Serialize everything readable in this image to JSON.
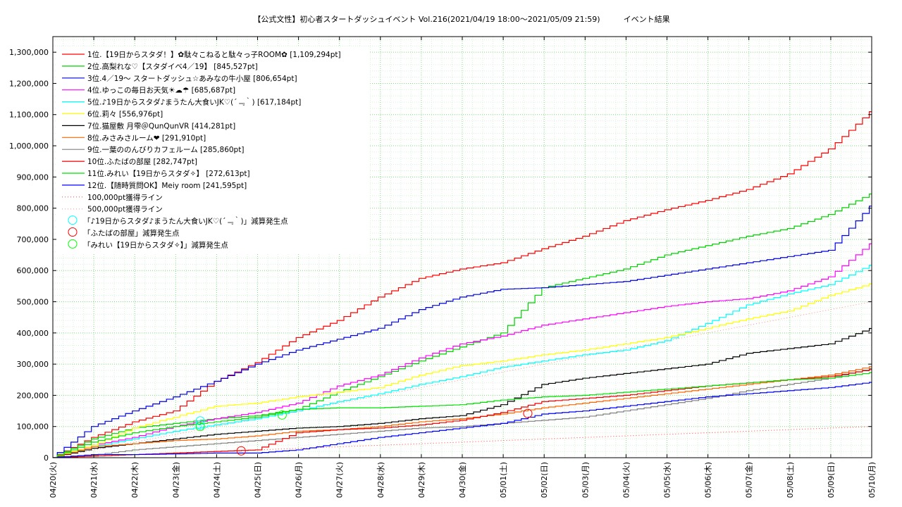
{
  "chart_data": {
    "type": "line",
    "title": "【公式文性】初心者スタートダッシュイベント Vol.216(2021/04/19 18:00〜2021/05/09 21:59)　　　イベント結果",
    "xlabel": "",
    "ylabel": "",
    "ylim": [
      0,
      1350000
    ],
    "y_ticks": [
      0,
      100000,
      200000,
      300000,
      400000,
      500000,
      600000,
      700000,
      800000,
      900000,
      1000000,
      1100000,
      1200000,
      1300000
    ],
    "y_tick_labels": [
      "0",
      "100,000",
      "200,000",
      "300,000",
      "400,000",
      "500,000",
      "600,000",
      "700,000",
      "800,000",
      "900,000",
      "1,000,000",
      "1,100,000",
      "1,200,000",
      "1,300,000"
    ],
    "x_range_days": [
      0,
      20
    ],
    "x_tick_labels": [
      "04/20(火)",
      "04/21(水)",
      "04/22(木)",
      "04/23(金)",
      "04/24(土)",
      "04/25(日)",
      "04/26(月)",
      "04/27(火)",
      "04/28(水)",
      "04/29(木)",
      "04/30(金)",
      "05/01(土)",
      "05/02(日)",
      "05/03(月)",
      "05/04(火)",
      "05/05(水)",
      "05/06(木)",
      "05/07(金)",
      "05/08(土)",
      "05/09(日)",
      "05/10(月)"
    ],
    "grid": true,
    "legend_position": "top-left",
    "series": [
      {
        "name": "1位.【19日からスタダ！】✿駄々こねると駄々っ子ROOM✿ [1,109,294pt]",
        "color": "#ff0000",
        "x": [
          "04/20(火)",
          "04/21(水)",
          "04/22(木)",
          "04/23(金)",
          "04/24(土)",
          "04/25(日)",
          "04/26(月)",
          "04/27(火)",
          "04/28(水)",
          "04/29(木)",
          "04/30(金)",
          "05/01(土)",
          "05/02(日)",
          "05/03(月)",
          "05/04(火)",
          "05/05(水)",
          "05/06(木)",
          "05/07(金)",
          "05/08(土)",
          "05/09(日)",
          "05/10(月)"
        ],
        "y": [
          0,
          65000,
          115000,
          150000,
          245000,
          305000,
          385000,
          440000,
          515000,
          575000,
          605000,
          625000,
          670000,
          710000,
          760000,
          795000,
          825000,
          860000,
          910000,
          990000,
          1109294
        ]
      },
      {
        "name": "2位.高梨れな♡【スタダイベ4／19】 [845,527pt]",
        "color": "#00d000",
        "x": [
          "04/20(火)",
          "04/21(水)",
          "04/22(木)",
          "04/23(金)",
          "04/24(土)",
          "04/25(日)",
          "04/26(月)",
          "04/27(火)",
          "04/28(水)",
          "04/29(木)",
          "04/30(金)",
          "05/01(土)",
          "05/02(日)",
          "05/03(月)",
          "05/04(火)",
          "05/05(水)",
          "05/06(木)",
          "05/07(金)",
          "05/08(土)",
          "05/09(日)",
          "05/10(月)"
        ],
        "y": [
          0,
          60000,
          95000,
          110000,
          125000,
          135000,
          155000,
          210000,
          260000,
          310000,
          355000,
          400000,
          545000,
          575000,
          605000,
          650000,
          680000,
          710000,
          735000,
          780000,
          845527
        ]
      },
      {
        "name": "3位.4／19〜 スタートダッシュ☆あみなの牛小屋 [806,654pt]",
        "color": "#0000e0",
        "x": [
          "04/20(火)",
          "04/21(水)",
          "04/22(木)",
          "04/23(金)",
          "04/24(土)",
          "04/25(日)",
          "04/26(月)",
          "04/27(火)",
          "04/28(水)",
          "04/29(木)",
          "04/30(金)",
          "05/01(土)",
          "05/02(日)",
          "05/03(月)",
          "05/04(火)",
          "05/05(水)",
          "05/06(木)",
          "05/07(金)",
          "05/08(土)",
          "05/09(日)",
          "05/10(月)"
        ],
        "y": [
          0,
          100000,
          150000,
          195000,
          245000,
          300000,
          345000,
          380000,
          415000,
          475000,
          515000,
          540000,
          545000,
          555000,
          565000,
          585000,
          605000,
          625000,
          645000,
          665000,
          806654
        ]
      },
      {
        "name": "4位.ゆっこの毎日お天気☀☁☂ [685,687pt]",
        "color": "#ff00ff",
        "x": [
          "04/20(火)",
          "04/21(水)",
          "04/22(木)",
          "04/23(金)",
          "04/24(土)",
          "04/25(日)",
          "04/26(月)",
          "04/27(火)",
          "04/28(水)",
          "04/29(木)",
          "04/30(金)",
          "05/01(土)",
          "05/02(日)",
          "05/03(月)",
          "05/04(火)",
          "05/05(水)",
          "05/06(木)",
          "05/07(金)",
          "05/08(土)",
          "05/09(日)",
          "05/10(月)"
        ],
        "y": [
          0,
          40000,
          65000,
          100000,
          125000,
          145000,
          175000,
          230000,
          265000,
          320000,
          365000,
          390000,
          425000,
          445000,
          465000,
          485000,
          500000,
          510000,
          535000,
          580000,
          685687
        ]
      },
      {
        "name": "5位.♪19日からスタダ♪まうたん大食いJK♡(´﹃｀) [617,184pt]",
        "color": "#00ffff",
        "x": [
          "04/20(火)",
          "04/21(水)",
          "04/22(木)",
          "04/23(金)",
          "04/24(土)",
          "04/25(日)",
          "04/26(月)",
          "04/27(火)",
          "04/28(水)",
          "04/29(木)",
          "04/30(金)",
          "05/01(土)",
          "05/02(日)",
          "05/03(月)",
          "05/04(火)",
          "05/05(水)",
          "05/06(木)",
          "05/07(金)",
          "05/08(土)",
          "05/09(日)",
          "05/10(月)"
        ],
        "y": [
          0,
          35000,
          60000,
          85000,
          105000,
          125000,
          150000,
          180000,
          205000,
          235000,
          260000,
          290000,
          310000,
          330000,
          345000,
          375000,
          430000,
          490000,
          525000,
          555000,
          617184
        ]
      },
      {
        "name": "6位.莉々 [556,976pt]",
        "color": "#ffff00",
        "x": [
          "04/20(火)",
          "04/21(水)",
          "04/22(木)",
          "04/23(金)",
          "04/24(土)",
          "04/25(日)",
          "04/26(月)",
          "04/27(火)",
          "04/28(水)",
          "04/29(木)",
          "04/30(金)",
          "05/01(土)",
          "05/02(日)",
          "05/03(月)",
          "05/04(火)",
          "05/05(水)",
          "05/06(木)",
          "05/07(金)",
          "05/08(土)",
          "05/09(日)",
          "05/10(月)"
        ],
        "y": [
          0,
          40000,
          95000,
          130000,
          165000,
          175000,
          195000,
          210000,
          225000,
          265000,
          295000,
          310000,
          330000,
          345000,
          365000,
          385000,
          415000,
          445000,
          470000,
          520000,
          556976
        ]
      },
      {
        "name": "7位.猫屋敷 月雫＠QunQunVR [414,281pt]",
        "color": "#000000",
        "x": [
          "04/20(火)",
          "04/21(水)",
          "04/22(木)",
          "04/23(金)",
          "04/24(土)",
          "04/25(日)",
          "04/26(月)",
          "04/27(火)",
          "04/28(水)",
          "04/29(木)",
          "04/30(金)",
          "05/01(土)",
          "05/02(日)",
          "05/03(月)",
          "05/04(火)",
          "05/05(水)",
          "05/06(木)",
          "05/07(金)",
          "05/08(土)",
          "05/09(日)",
          "05/10(月)"
        ],
        "y": [
          0,
          30000,
          45000,
          60000,
          75000,
          85000,
          95000,
          100000,
          110000,
          125000,
          135000,
          170000,
          235000,
          255000,
          270000,
          285000,
          300000,
          335000,
          350000,
          365000,
          414281
        ]
      },
      {
        "name": "8位.みさみさルーム❤ [291,910pt]",
        "color": "#ff6600",
        "x": [
          "04/20(火)",
          "04/21(水)",
          "04/22(木)",
          "04/23(金)",
          "04/24(土)",
          "04/25(日)",
          "04/26(月)",
          "04/27(火)",
          "04/28(水)",
          "04/29(木)",
          "04/30(金)",
          "05/01(土)",
          "05/02(日)",
          "05/03(月)",
          "05/04(火)",
          "05/05(水)",
          "05/06(木)",
          "05/07(金)",
          "05/08(土)",
          "05/09(日)",
          "05/10(月)"
        ],
        "y": [
          0,
          35000,
          45000,
          55000,
          60000,
          70000,
          85000,
          90000,
          100000,
          115000,
          125000,
          140000,
          160000,
          175000,
          190000,
          205000,
          220000,
          235000,
          250000,
          265000,
          291910
        ]
      },
      {
        "name": "9位.一葉ののんびりカフェルーム [285,860pt]",
        "color": "#808080",
        "x": [
          "04/20(火)",
          "04/21(水)",
          "04/22(木)",
          "04/23(金)",
          "04/24(土)",
          "04/25(日)",
          "04/26(月)",
          "04/27(火)",
          "04/28(水)",
          "04/29(木)",
          "04/30(金)",
          "05/01(土)",
          "05/02(日)",
          "05/03(月)",
          "05/04(火)",
          "05/05(水)",
          "05/06(木)",
          "05/07(金)",
          "05/08(土)",
          "05/09(日)",
          "05/10(月)"
        ],
        "y": [
          0,
          8000,
          25000,
          35000,
          45000,
          55000,
          65000,
          75000,
          85000,
          95000,
          100000,
          110000,
          120000,
          130000,
          150000,
          170000,
          190000,
          215000,
          235000,
          255000,
          285860
        ]
      },
      {
        "name": "10位.ふたばの部屋 [282,747pt]",
        "color": "#ee0000",
        "x": [
          "04/20(火)",
          "04/21(水)",
          "04/22(木)",
          "04/23(金)",
          "04/24(土)",
          "04/25(日)",
          "04/26(月)",
          "04/27(火)",
          "04/28(水)",
          "04/29(木)",
          "04/30(金)",
          "05/01(土)",
          "05/02(日)",
          "05/03(月)",
          "05/04(火)",
          "05/05(水)",
          "05/06(木)",
          "05/07(金)",
          "05/08(土)",
          "05/09(日)",
          "05/10(月)"
        ],
        "y": [
          0,
          5000,
          10000,
          15000,
          20000,
          25000,
          80000,
          90000,
          95000,
          105000,
          120000,
          145000,
          180000,
          190000,
          200000,
          215000,
          230000,
          240000,
          250000,
          260000,
          282747
        ]
      },
      {
        "name": "11位.みれい【19日からスタダ✧】 [272,613pt]",
        "color": "#00e000",
        "x": [
          "04/20(火)",
          "04/21(水)",
          "04/22(木)",
          "04/23(金)",
          "04/24(土)",
          "04/25(日)",
          "04/26(月)",
          "04/27(火)",
          "04/28(水)",
          "04/29(木)",
          "04/30(金)",
          "05/01(土)",
          "05/02(日)",
          "05/03(月)",
          "05/04(火)",
          "05/05(水)",
          "05/06(木)",
          "05/07(金)",
          "05/08(土)",
          "05/09(日)",
          "05/10(月)"
        ],
        "y": [
          0,
          50000,
          80000,
          100000,
          115000,
          130000,
          155000,
          160000,
          160000,
          165000,
          170000,
          185000,
          195000,
          200000,
          210000,
          220000,
          230000,
          240000,
          250000,
          255000,
          272613
        ]
      },
      {
        "name": "12位.【随時質問OK】Meiy room [241,595pt]",
        "color": "#0000ff",
        "x": [
          "04/20(火)",
          "04/21(水)",
          "04/22(木)",
          "04/23(金)",
          "04/24(土)",
          "04/25(日)",
          "04/26(月)",
          "04/27(火)",
          "04/28(水)",
          "04/29(木)",
          "04/30(金)",
          "05/01(土)",
          "05/02(日)",
          "05/03(月)",
          "05/04(火)",
          "05/05(水)",
          "05/06(木)",
          "05/07(金)",
          "05/08(土)",
          "05/09(日)",
          "05/10(月)"
        ],
        "y": [
          0,
          10000,
          10000,
          12000,
          15000,
          15000,
          25000,
          45000,
          65000,
          80000,
          95000,
          110000,
          140000,
          150000,
          165000,
          180000,
          195000,
          205000,
          215000,
          225000,
          241595
        ]
      }
    ],
    "reference_lines": [
      {
        "name": "100,000pt獲得ライン",
        "color": "#ff4040",
        "x": [
          "04/20(火)",
          "05/10(月)"
        ],
        "y": [
          0,
          100000
        ]
      },
      {
        "name": "500,000pt獲得ライン",
        "color": "#ff9090",
        "x": [
          "04/20(火)",
          "05/10(月)"
        ],
        "y": [
          0,
          500000
        ]
      }
    ],
    "markers": [
      {
        "name": "「♪19日からスタダ♪まうたん大食いJK♡(´﹃｀)」減算発生点",
        "color": "#00ffff",
        "points": [
          {
            "x": "04/23(金)",
            "y": 118000
          },
          {
            "x": "04/23(金)",
            "y": 105000
          }
        ]
      },
      {
        "name": "「ふたばの部屋」減算発生点",
        "color": "#ff0000",
        "points": [
          {
            "x": "04/24(土)",
            "y": 22000
          },
          {
            "x": "05/01(土)",
            "y": 142000
          }
        ]
      },
      {
        "name": "「みれい【19日からスタダ✧】」減算発生点",
        "color": "#00ff00",
        "points": [
          {
            "x": "04/23(金)",
            "y": 100000
          },
          {
            "x": "04/25(日)",
            "y": 137000
          }
        ]
      }
    ]
  }
}
